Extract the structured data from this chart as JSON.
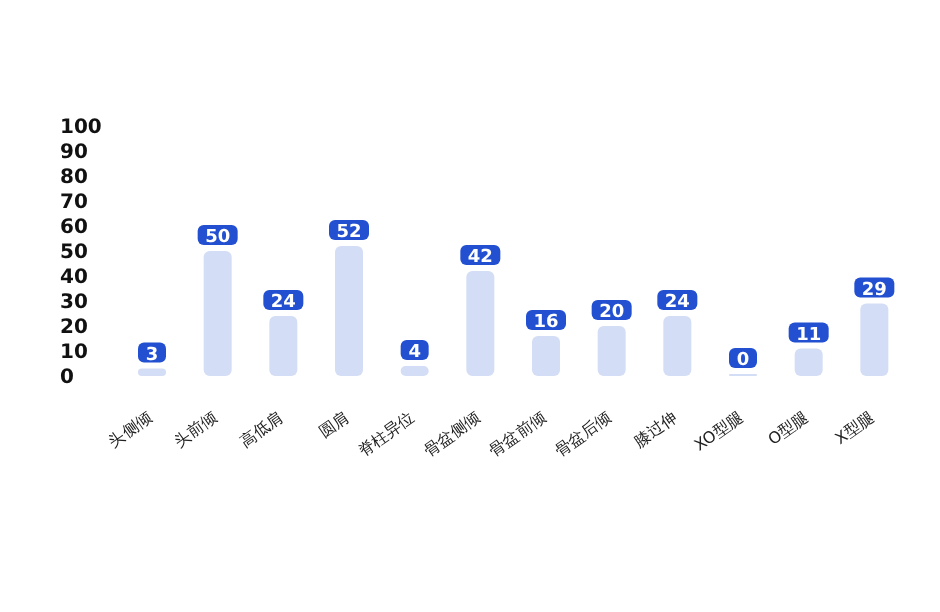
{
  "chart_data": {
    "type": "bar",
    "categories": [
      "头侧倾",
      "头前倾",
      "高低肩",
      "圆肩",
      "脊柱异位",
      "骨盆侧倾",
      "骨盆前倾",
      "骨盆后倾",
      "膝过伸",
      "XO型腿",
      "O型腿",
      "X型腿"
    ],
    "values": [
      3,
      50,
      24,
      52,
      4,
      42,
      16,
      20,
      24,
      0,
      11,
      29
    ],
    "color": "#d3ddf5",
    "ylim": [
      0,
      100
    ],
    "yticks": [
      0,
      10,
      20,
      30,
      40,
      50,
      60,
      70,
      80,
      90,
      100
    ],
    "grid": false,
    "data_labels": true
  }
}
